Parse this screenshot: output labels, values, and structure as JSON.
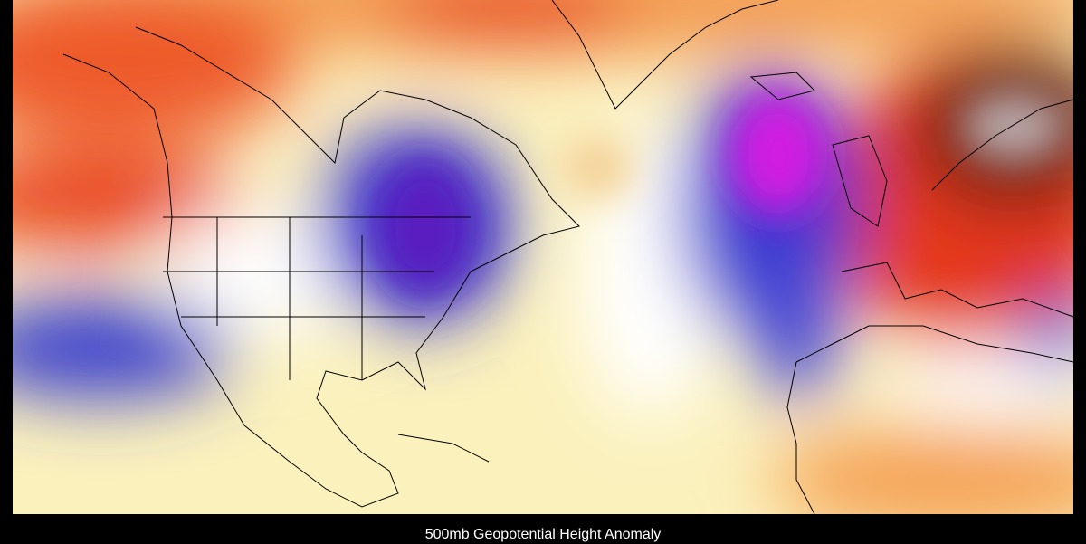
{
  "caption": "500mb Geopotential Height Anomaly"
}
